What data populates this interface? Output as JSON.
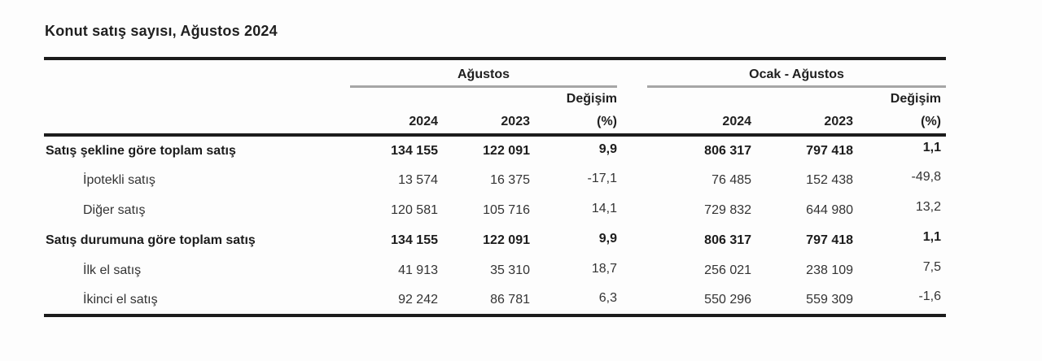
{
  "page": {
    "title": "Konut satış sayısı, Ağustos 2024"
  },
  "table": {
    "groups": [
      {
        "label": "Ağustos"
      },
      {
        "label": "Ocak - Ağustos"
      }
    ],
    "change_label": "Değişim",
    "change_unit": "(%)",
    "year_cols": [
      "2024",
      "2023"
    ],
    "rows": [
      {
        "label": "Satış şekline göre toplam satış",
        "bold": true,
        "indent": false,
        "cells": [
          "134 155",
          "122 091",
          "9,9",
          "806 317",
          "797 418",
          "1,1"
        ]
      },
      {
        "label": "İpotekli satış",
        "bold": false,
        "indent": true,
        "cells": [
          "13 574",
          "16 375",
          "-17,1",
          "76 485",
          "152 438",
          "-49,8"
        ]
      },
      {
        "label": "Diğer satış",
        "bold": false,
        "indent": true,
        "cells": [
          "120 581",
          "105 716",
          "14,1",
          "729 832",
          "644 980",
          "13,2"
        ]
      },
      {
        "label": "Satış durumuna göre toplam satış",
        "bold": true,
        "indent": false,
        "cells": [
          "134 155",
          "122 091",
          "9,9",
          "806 317",
          "797 418",
          "1,1"
        ]
      },
      {
        "label": "İlk el satış",
        "bold": false,
        "indent": true,
        "cells": [
          "41 913",
          "35 310",
          "18,7",
          "256 021",
          "238 109",
          "7,5"
        ]
      },
      {
        "label": "İkinci el satış",
        "bold": false,
        "indent": true,
        "cells": [
          "92 242",
          "86 781",
          "6,3",
          "550 296",
          "559 309",
          "-1,6"
        ]
      }
    ]
  },
  "colors": {
    "rule_dark": "#1c1c1c",
    "rule_gray": "#a6a6a6",
    "text": "#2b2b2b",
    "background": "#fdfdfd"
  },
  "chart_data": {
    "type": "table",
    "title": "Konut satış sayısı, Ağustos 2024",
    "column_groups": [
      "Ağustos",
      "Ocak - Ağustos"
    ],
    "columns": [
      "Ağustos 2024",
      "Ağustos 2023",
      "Ağustos Değişim (%)",
      "Ocak - Ağustos 2024",
      "Ocak - Ağustos 2023",
      "Ocak - Ağustos Değişim (%)"
    ],
    "rows": [
      {
        "label": "Satış şekline göre toplam satış",
        "values": [
          134155,
          122091,
          9.9,
          806317,
          797418,
          1.1
        ]
      },
      {
        "label": "İpotekli satış",
        "values": [
          13574,
          16375,
          -17.1,
          76485,
          152438,
          -49.8
        ]
      },
      {
        "label": "Diğer satış",
        "values": [
          120581,
          105716,
          14.1,
          729832,
          644980,
          13.2
        ]
      },
      {
        "label": "Satış durumuna göre toplam satış",
        "values": [
          134155,
          122091,
          9.9,
          806317,
          797418,
          1.1
        ]
      },
      {
        "label": "İlk el satış",
        "values": [
          41913,
          35310,
          18.7,
          256021,
          238109,
          7.5
        ]
      },
      {
        "label": "İkinci el satış",
        "values": [
          92242,
          86781,
          6.3,
          550296,
          559309,
          -1.6
        ]
      }
    ]
  }
}
